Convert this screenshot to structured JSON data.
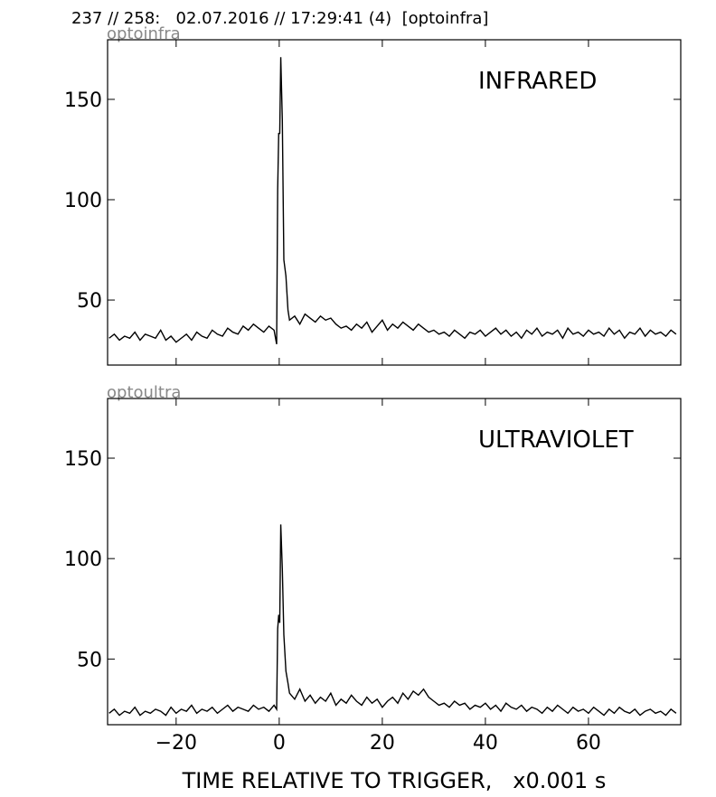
{
  "header": "237 // 258:   02.07.2016 // 17:29:41 (4)  [optoinfra]",
  "chart_data": [
    {
      "type": "line",
      "label": "optoinfra",
      "annotation": "INFRARED",
      "color": "#000000",
      "x": [
        -33,
        -32,
        -31,
        -30,
        -29,
        -28,
        -27,
        -26,
        -25,
        -24,
        -23,
        -22,
        -21,
        -20,
        -19,
        -18,
        -17,
        -16,
        -15,
        -14,
        -13,
        -12,
        -11,
        -10,
        -9,
        -8,
        -7,
        -6,
        -5,
        -4,
        -3,
        -2,
        -1,
        -0.5,
        -0.3,
        -0.1,
        0.1,
        0.3,
        0.6,
        0.9,
        1.3,
        1.7,
        2,
        3,
        4,
        5,
        6,
        7,
        8,
        9,
        10,
        11,
        12,
        13,
        14,
        15,
        16,
        17,
        18,
        19,
        20,
        21,
        22,
        23,
        24,
        25,
        26,
        27,
        28,
        29,
        30,
        31,
        32,
        33,
        34,
        35,
        36,
        37,
        38,
        39,
        40,
        41,
        42,
        43,
        44,
        45,
        46,
        47,
        48,
        49,
        50,
        51,
        52,
        53,
        54,
        55,
        56,
        57,
        58,
        59,
        60,
        61,
        62,
        63,
        64,
        65,
        66,
        67,
        68,
        69,
        70,
        71,
        72,
        73,
        74,
        75,
        76,
        77
      ],
      "values": [
        31,
        33,
        30,
        32,
        31,
        34,
        30,
        33,
        32,
        31,
        35,
        30,
        32,
        29,
        31,
        33,
        30,
        34,
        32,
        31,
        35,
        33,
        32,
        36,
        34,
        33,
        37,
        35,
        38,
        36,
        34,
        37,
        35,
        28,
        105,
        133,
        133,
        171,
        140,
        70,
        62,
        45,
        40,
        42,
        38,
        43,
        41,
        39,
        42,
        40,
        41,
        38,
        36,
        37,
        35,
        38,
        36,
        39,
        34,
        37,
        40,
        35,
        38,
        36,
        39,
        37,
        35,
        38,
        36,
        34,
        35,
        33,
        34,
        32,
        35,
        33,
        31,
        34,
        33,
        35,
        32,
        34,
        36,
        33,
        35,
        32,
        34,
        31,
        35,
        33,
        36,
        32,
        34,
        33,
        35,
        31,
        36,
        33,
        34,
        32,
        35,
        33,
        34,
        32,
        36,
        33,
        35,
        31,
        34,
        33,
        36,
        32,
        35,
        33,
        34,
        32,
        35,
        33
      ],
      "xlim": [
        -33.3,
        77.9
      ],
      "ylim": [
        17.6,
        179.7
      ],
      "xticks": [
        {
          "value": -20,
          "label": "−20"
        },
        0,
        20,
        40,
        60
      ],
      "yticks": [
        50,
        100,
        150
      ]
    },
    {
      "type": "line",
      "label": "optoultra",
      "annotation": "ULTRAVIOLET",
      "color": "#000000",
      "xlabel": "TIME RELATIVE TO TRIGGER,   x0.001 s",
      "x": [
        -33,
        -32,
        -31,
        -30,
        -29,
        -28,
        -27,
        -26,
        -25,
        -24,
        -23,
        -22,
        -21,
        -20,
        -19,
        -18,
        -17,
        -16,
        -15,
        -14,
        -13,
        -12,
        -11,
        -10,
        -9,
        -8,
        -7,
        -6,
        -5,
        -4,
        -3,
        -2,
        -1,
        -0.5,
        -0.3,
        -0.1,
        0.1,
        0.3,
        0.6,
        0.9,
        1.3,
        1.7,
        2,
        3,
        4,
        5,
        6,
        7,
        8,
        9,
        10,
        11,
        12,
        13,
        14,
        15,
        16,
        17,
        18,
        19,
        20,
        21,
        22,
        23,
        24,
        25,
        26,
        27,
        28,
        29,
        30,
        31,
        32,
        33,
        34,
        35,
        36,
        37,
        38,
        39,
        40,
        41,
        42,
        43,
        44,
        45,
        46,
        47,
        48,
        49,
        50,
        51,
        52,
        53,
        54,
        55,
        56,
        57,
        58,
        59,
        60,
        61,
        62,
        63,
        64,
        65,
        66,
        67,
        68,
        69,
        70,
        71,
        72,
        73,
        74,
        75,
        76,
        77
      ],
      "values": [
        23,
        25,
        22,
        24,
        23,
        26,
        22,
        24,
        23,
        25,
        24,
        22,
        26,
        23,
        25,
        24,
        27,
        23,
        25,
        24,
        26,
        23,
        25,
        27,
        24,
        26,
        25,
        24,
        27,
        25,
        26,
        24,
        27,
        25,
        65,
        72,
        68,
        117,
        95,
        62,
        44,
        38,
        33,
        30,
        35,
        29,
        32,
        28,
        31,
        29,
        33,
        27,
        30,
        28,
        32,
        29,
        27,
        31,
        28,
        30,
        26,
        29,
        31,
        28,
        33,
        30,
        34,
        32,
        35,
        31,
        29,
        27,
        28,
        26,
        29,
        27,
        28,
        25,
        27,
        26,
        28,
        25,
        27,
        24,
        28,
        26,
        25,
        27,
        24,
        26,
        25,
        23,
        26,
        24,
        27,
        25,
        23,
        26,
        24,
        25,
        23,
        26,
        24,
        22,
        25,
        23,
        26,
        24,
        23,
        25,
        22,
        24,
        25,
        23,
        24,
        22,
        25,
        23
      ],
      "xlim": [
        -33.3,
        77.9
      ],
      "ylim": [
        17.3,
        179.7
      ],
      "xticks": [
        {
          "value": -20,
          "label": "−20"
        },
        0,
        20,
        40,
        60
      ],
      "yticks": [
        50,
        100,
        150
      ]
    }
  ]
}
